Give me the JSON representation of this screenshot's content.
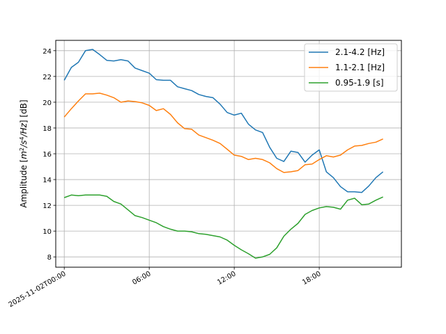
{
  "chart_data": {
    "type": "line",
    "title": "",
    "xlabel": "",
    "ylabel": "Amplitude [m²/s⁴/Hz] [dB]",
    "ylabel_parts": {
      "prefix": "Amplitude [",
      "m": "m",
      "m_exp": "2",
      "slash_s": "/s",
      "s_exp": "4",
      "slash_Hz": "/Hz",
      "suffix": "] [dB]"
    },
    "xlim_hours": [
      -0.6,
      23.8
    ],
    "ylim": [
      7.2,
      24.8
    ],
    "yticks": [
      8,
      10,
      12,
      14,
      16,
      18,
      20,
      22,
      24
    ],
    "xticks": [
      {
        "hour": 0,
        "label": "2025-11-02T00:00"
      },
      {
        "hour": 6,
        "label": "06:00"
      },
      {
        "hour": 12,
        "label": "12:00"
      },
      {
        "hour": 18,
        "label": "18:00"
      }
    ],
    "grid": true,
    "legend_position": "top-right",
    "x_hours": [
      0,
      0.5,
      1,
      1.5,
      2,
      2.5,
      3,
      3.5,
      4,
      4.5,
      5,
      5.5,
      6,
      6.5,
      7,
      7.5,
      8,
      8.5,
      9,
      9.5,
      10,
      10.5,
      11,
      11.5,
      12,
      12.5,
      13,
      13.5,
      14,
      14.5,
      15,
      15.5,
      16,
      16.5,
      17,
      17.5,
      18,
      18.5,
      19,
      19.5,
      20,
      20.5,
      21,
      21.5,
      22,
      22.5,
      23,
      23.5
    ],
    "series": [
      {
        "name": "2.1-4.2 [Hz]",
        "color": "#1f77b4",
        "values": [
          21.7,
          22.7,
          23.1,
          24.0,
          24.1,
          23.7,
          23.25,
          23.2,
          23.3,
          23.2,
          22.65,
          22.45,
          22.25,
          21.75,
          21.7,
          21.7,
          21.2,
          21.05,
          20.9,
          20.6,
          20.45,
          20.35,
          19.85,
          19.2,
          19.0,
          19.15,
          18.3,
          17.85,
          17.65,
          16.5,
          15.65,
          15.4,
          16.2,
          16.1,
          15.35,
          15.9,
          16.3,
          14.6,
          14.15,
          13.45,
          13.05,
          13.05,
          13.0,
          13.5,
          14.15,
          14.6,
          null,
          null
        ]
      },
      {
        "name": "1.1-2.1 [Hz]",
        "color": "#ff7f0e",
        "values": [
          18.85,
          19.5,
          20.1,
          20.65,
          20.65,
          20.7,
          20.55,
          20.35,
          20.0,
          20.1,
          20.05,
          19.95,
          19.75,
          19.35,
          19.5,
          19.05,
          18.4,
          17.95,
          17.9,
          17.45,
          17.25,
          17.05,
          16.8,
          16.35,
          15.9,
          15.8,
          15.55,
          15.65,
          15.55,
          15.3,
          14.85,
          14.55,
          14.6,
          14.7,
          15.15,
          15.2,
          15.55,
          15.85,
          15.75,
          15.9,
          16.3,
          16.6,
          16.65,
          16.8,
          16.9,
          17.15,
          null,
          null
        ],
        "note": null
      },
      {
        "name": "0.95-1.9 [s]",
        "color": "#2ca02c",
        "values": [
          12.6,
          12.8,
          12.75,
          12.8,
          12.8,
          12.8,
          12.7,
          12.3,
          12.1,
          11.65,
          11.2,
          11.05,
          10.85,
          10.65,
          10.35,
          10.15,
          10.0,
          10.0,
          9.95,
          9.8,
          9.75,
          9.65,
          9.55,
          9.3,
          8.9,
          8.55,
          8.25,
          7.9,
          8.0,
          8.2,
          8.7,
          9.6,
          10.15,
          10.6,
          11.3,
          11.6,
          11.8,
          11.9,
          11.85,
          11.7,
          12.4,
          12.55,
          12.05,
          12.1,
          12.4,
          12.65,
          null,
          null
        ]
      }
    ]
  }
}
